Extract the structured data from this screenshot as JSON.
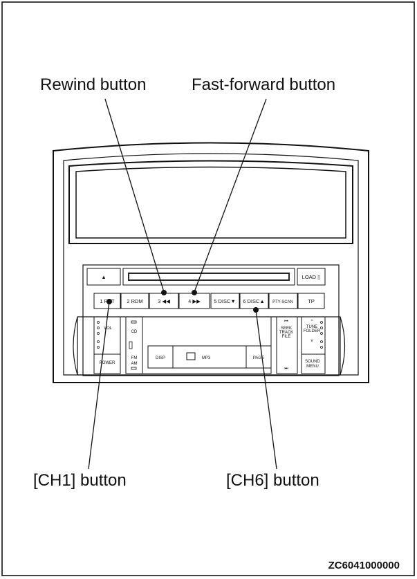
{
  "callouts": {
    "rewind": "Rewind button",
    "fast_forward": "Fast-forward button",
    "ch1": "[CH1] button",
    "ch6": "[CH6] button"
  },
  "figure_code": "ZC6041000000",
  "panel": {
    "eject_symbol": "▲",
    "load_label": "LOAD ▯",
    "preset_buttons": [
      "1 RPT",
      "2 RDM",
      "3 ◀◀",
      "4 ▶▶",
      "5 DISC▼",
      "6 DISC▲",
      "PTY-SCAN",
      "TP"
    ],
    "left_column": {
      "vol": "VOL",
      "power": "POWER"
    },
    "source_buttons": {
      "cd": "CD",
      "fm_am_1": "FM",
      "fm_am_2": "AM"
    },
    "display_row": {
      "disp": "DISP",
      "mp3": "MP3",
      "page": "PAGE"
    },
    "right_controls": {
      "seek_prev": "⏮",
      "seek_1": "SEEK",
      "seek_2": "TRACK",
      "seek_3": "FILE",
      "seek_next": "⏭",
      "tune_up": "^",
      "tune_1": "TUNE",
      "tune_2": "FOLDER",
      "tune_down": "v",
      "sound_1": "SOUND",
      "sound_2": "MENU"
    }
  }
}
